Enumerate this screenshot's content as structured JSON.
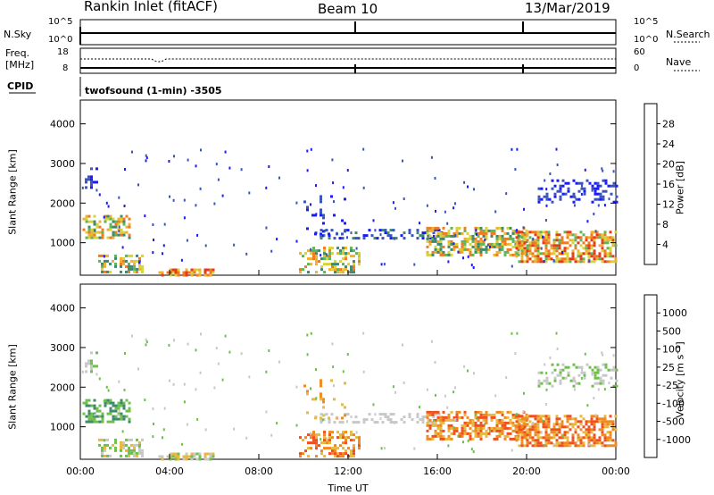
{
  "header": {
    "station": "Rankin Inlet (fitACF)",
    "beam": "Beam 10",
    "date": "13/Mar/2019"
  },
  "summary_panels": {
    "nsky_label": "N.Sky",
    "nsky_ticks": [
      "10^5",
      "10^0"
    ],
    "nsearch_label": "N.Search",
    "nsearch_ticks": [
      "10^5",
      "10^0"
    ],
    "freq_label_line1": "Freq.",
    "freq_label_line2": "[MHz]",
    "freq_ticks": [
      "18",
      "8"
    ],
    "nave_label": "Nave",
    "nave_ticks": [
      "60",
      "0"
    ],
    "cpid_label": "CPID",
    "cpid_value": "twofsound (1-min) -3505"
  },
  "chart_data": [
    {
      "type": "heatmap",
      "name": "power",
      "ylabel": "Slant Range [km]",
      "xlabel": "",
      "yticks": [
        1000,
        2000,
        3000,
        4000
      ],
      "ylim": [
        180,
        4600
      ],
      "xlim": [
        0,
        24
      ],
      "colorbar_label": "Power [dB]",
      "colorbar_ticks": [
        "4",
        "8",
        "12",
        "16",
        "20",
        "24",
        "28"
      ],
      "colorbar_colors": [
        "#1a1aff",
        "#3a55b8",
        "#3d8a6e",
        "#5fb55a",
        "#d7d43a",
        "#f0b030",
        "#f07a20",
        "#e83a1a"
      ]
    },
    {
      "type": "heatmap",
      "name": "velocity",
      "ylabel": "Slant Range [km]",
      "xlabel": "Time UT",
      "xticks": [
        "00:00",
        "04:00",
        "08:00",
        "12:00",
        "16:00",
        "20:00",
        "00:00"
      ],
      "yticks": [
        1000,
        2000,
        3000,
        4000
      ],
      "ylim": [
        180,
        4600
      ],
      "xlim": [
        0,
        24
      ],
      "colorbar_label": "Velocity [m s⁻¹]",
      "colorbar_ticks": [
        "1000",
        "500",
        "100",
        "25",
        "-25",
        "-100",
        "-500",
        "-1000"
      ],
      "colorbar_colors": [
        "#2a4fc0",
        "#3a70b0",
        "#3d8a6e",
        "#6fc04a",
        "#c8c8c8",
        "#e8b840",
        "#f08a20",
        "#f05020",
        "#e02010"
      ]
    }
  ]
}
